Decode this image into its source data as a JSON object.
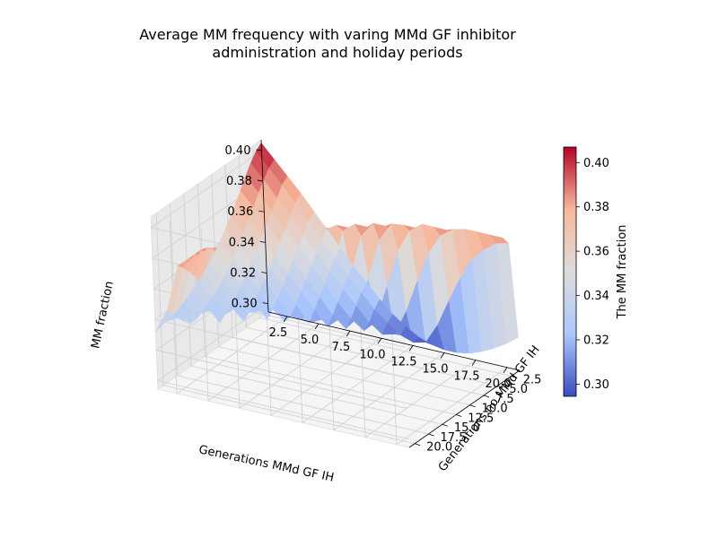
{
  "chart_data": {
    "type": "surface",
    "title": "Average MM frequency with varing MMd GF inhibitor administration and holiday periods",
    "title_lines": [
      "Average MM frequency with varing MMd GF inhibitor",
      "administration and holiday periods"
    ],
    "xlabel": "Generations MMd GF IH",
    "ylabel": "Generations no MMd GF IH",
    "zlabel": "MM fraction",
    "colorbar_label": "The MM fraction",
    "colormap": "coolwarm",
    "colormap_colors": [
      "#3b4cc0",
      "#aac7fd",
      "#dddcdc",
      "#f7b89c",
      "#b40426"
    ],
    "xlim": [
      1,
      21
    ],
    "ylim": [
      1,
      21
    ],
    "zlim": [
      0.2945,
      0.407
    ],
    "x_ticks": [
      2.5,
      5.0,
      7.5,
      10.0,
      12.5,
      15.0,
      17.5,
      20.0
    ],
    "x_tick_labels": [
      "2.5",
      "5.0",
      "7.5",
      "10.0",
      "12.5",
      "15.0",
      "17.5",
      "20.0"
    ],
    "y_ticks": [
      2.5,
      5.0,
      7.5,
      10.0,
      12.5,
      15.0,
      17.5,
      20.0
    ],
    "y_tick_labels": [
      "2.5",
      "5.0",
      "7.5",
      "10.0",
      "12.5",
      "15.0",
      "17.5",
      "20.0"
    ],
    "z_ticks": [
      0.3,
      0.32,
      0.34,
      0.36,
      0.38,
      0.4
    ],
    "z_tick_labels": [
      "0.30",
      "0.32",
      "0.34",
      "0.36",
      "0.38",
      "0.40"
    ],
    "colorbar_ticks": [
      0.3,
      0.32,
      0.34,
      0.36,
      0.38,
      0.4
    ],
    "colorbar_tick_labels": [
      "0.30",
      "0.32",
      "0.34",
      "0.36",
      "0.38",
      "0.40"
    ],
    "grid": true,
    "x": [
      1,
      2,
      3,
      4,
      5,
      6,
      7,
      8,
      9,
      10,
      11,
      12,
      13,
      14,
      15,
      16,
      17,
      18,
      19,
      20,
      21
    ],
    "y": [
      1,
      2,
      3,
      4,
      5,
      6,
      7,
      8,
      9,
      10,
      11,
      12,
      13,
      14,
      15,
      16,
      17,
      18,
      19,
      20,
      21
    ],
    "z_rows_by_y": [
      [
        0.405,
        0.396,
        0.387,
        0.378,
        0.368,
        0.358,
        0.348,
        0.338,
        0.329,
        0.32,
        0.312,
        0.306,
        0.301,
        0.298,
        0.2965,
        0.2965,
        0.298,
        0.301,
        0.305,
        0.31,
        0.316
      ],
      [
        0.402,
        0.393,
        0.384,
        0.374,
        0.364,
        0.354,
        0.344,
        0.334,
        0.325,
        0.316,
        0.309,
        0.303,
        0.3,
        0.302,
        0.315,
        0.333,
        0.35,
        0.364,
        0.372,
        0.378,
        0.38
      ],
      [
        0.397,
        0.388,
        0.378,
        0.368,
        0.358,
        0.348,
        0.338,
        0.328,
        0.319,
        0.31,
        0.304,
        0.306,
        0.323,
        0.345,
        0.365,
        0.378,
        0.384,
        0.386,
        0.386,
        0.386,
        0.386
      ],
      [
        0.391,
        0.382,
        0.372,
        0.362,
        0.352,
        0.342,
        0.332,
        0.322,
        0.313,
        0.307,
        0.315,
        0.34,
        0.365,
        0.38,
        0.386,
        0.386,
        0.386,
        0.386,
        0.386,
        0.386,
        0.386
      ],
      [
        0.384,
        0.375,
        0.366,
        0.356,
        0.346,
        0.336,
        0.326,
        0.316,
        0.309,
        0.318,
        0.346,
        0.373,
        0.385,
        0.386,
        0.386,
        0.386,
        0.386,
        0.386,
        0.386,
        0.386,
        0.386
      ],
      [
        0.378,
        0.369,
        0.36,
        0.35,
        0.34,
        0.33,
        0.32,
        0.311,
        0.318,
        0.348,
        0.376,
        0.386,
        0.386,
        0.386,
        0.386,
        0.386,
        0.386,
        0.386,
        0.386,
        0.386,
        0.386
      ],
      [
        0.372,
        0.363,
        0.354,
        0.344,
        0.334,
        0.324,
        0.314,
        0.318,
        0.35,
        0.38,
        0.386,
        0.386,
        0.386,
        0.386,
        0.386,
        0.386,
        0.386,
        0.386,
        0.386,
        0.386,
        0.386
      ],
      [
        0.366,
        0.357,
        0.348,
        0.339,
        0.329,
        0.319,
        0.318,
        0.35,
        0.381,
        0.386,
        0.386,
        0.386,
        0.386,
        0.386,
        0.386,
        0.386,
        0.386,
        0.386,
        0.386,
        0.386,
        0.386
      ],
      [
        0.361,
        0.352,
        0.343,
        0.334,
        0.324,
        0.318,
        0.345,
        0.378,
        0.386,
        0.386,
        0.386,
        0.386,
        0.386,
        0.386,
        0.386,
        0.386,
        0.386,
        0.386,
        0.386,
        0.386,
        0.386
      ],
      [
        0.356,
        0.347,
        0.338,
        0.329,
        0.32,
        0.338,
        0.372,
        0.386,
        0.386,
        0.386,
        0.386,
        0.386,
        0.386,
        0.386,
        0.386,
        0.386,
        0.386,
        0.386,
        0.386,
        0.386,
        0.386
      ],
      [
        0.352,
        0.343,
        0.334,
        0.325,
        0.328,
        0.362,
        0.384,
        0.386,
        0.386,
        0.386,
        0.386,
        0.386,
        0.386,
        0.386,
        0.386,
        0.386,
        0.386,
        0.386,
        0.386,
        0.386,
        0.386
      ],
      [
        0.348,
        0.339,
        0.33,
        0.322,
        0.348,
        0.378,
        0.386,
        0.386,
        0.386,
        0.386,
        0.386,
        0.386,
        0.386,
        0.386,
        0.386,
        0.386,
        0.386,
        0.386,
        0.386,
        0.386,
        0.386
      ],
      [
        0.345,
        0.336,
        0.327,
        0.334,
        0.368,
        0.386,
        0.386,
        0.386,
        0.386,
        0.386,
        0.386,
        0.386,
        0.386,
        0.386,
        0.386,
        0.386,
        0.386,
        0.386,
        0.386,
        0.386,
        0.386
      ],
      [
        0.342,
        0.333,
        0.324,
        0.35,
        0.378,
        0.386,
        0.386,
        0.386,
        0.386,
        0.386,
        0.386,
        0.386,
        0.386,
        0.386,
        0.386,
        0.386,
        0.386,
        0.386,
        0.386,
        0.386,
        0.386
      ],
      [
        0.34,
        0.331,
        0.335,
        0.366,
        0.385,
        0.386,
        0.386,
        0.386,
        0.386,
        0.386,
        0.386,
        0.386,
        0.386,
        0.386,
        0.386,
        0.386,
        0.386,
        0.386,
        0.386,
        0.386,
        0.386
      ],
      [
        0.338,
        0.329,
        0.346,
        0.376,
        0.386,
        0.386,
        0.386,
        0.386,
        0.386,
        0.386,
        0.386,
        0.386,
        0.386,
        0.386,
        0.386,
        0.386,
        0.386,
        0.386,
        0.386,
        0.386,
        0.386
      ],
      [
        0.336,
        0.329,
        0.356,
        0.382,
        0.386,
        0.386,
        0.386,
        0.386,
        0.386,
        0.386,
        0.386,
        0.386,
        0.386,
        0.386,
        0.386,
        0.386,
        0.386,
        0.386,
        0.386,
        0.386,
        0.386
      ],
      [
        0.335,
        0.333,
        0.364,
        0.385,
        0.386,
        0.386,
        0.386,
        0.386,
        0.386,
        0.386,
        0.386,
        0.386,
        0.386,
        0.386,
        0.386,
        0.386,
        0.386,
        0.386,
        0.386,
        0.386,
        0.386
      ],
      [
        0.334,
        0.338,
        0.37,
        0.386,
        0.386,
        0.386,
        0.386,
        0.386,
        0.386,
        0.386,
        0.386,
        0.386,
        0.386,
        0.386,
        0.386,
        0.386,
        0.386,
        0.386,
        0.386,
        0.386,
        0.386
      ],
      [
        0.333,
        0.343,
        0.375,
        0.386,
        0.386,
        0.386,
        0.386,
        0.386,
        0.386,
        0.386,
        0.386,
        0.386,
        0.386,
        0.386,
        0.386,
        0.386,
        0.386,
        0.386,
        0.386,
        0.386,
        0.386
      ],
      [
        0.332,
        0.348,
        0.379,
        0.386,
        0.386,
        0.386,
        0.386,
        0.386,
        0.386,
        0.386,
        0.386,
        0.386,
        0.386,
        0.386,
        0.386,
        0.386,
        0.386,
        0.386,
        0.386,
        0.386,
        0.386
      ]
    ]
  }
}
